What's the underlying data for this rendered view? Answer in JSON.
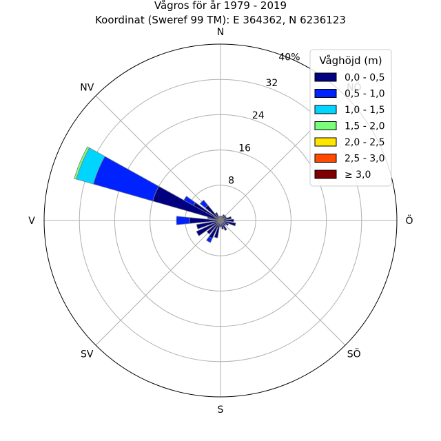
{
  "chart_data": {
    "type": "windrose",
    "title_line1": "Vågros för år 1979 - 2019",
    "title_line2": "Koordinat (Sweref 99 TM): E 364362, N 6236123",
    "direction_labels": [
      "N",
      "NV",
      "V",
      "SV",
      "S",
      "SÖ",
      "Ö",
      "NÖ"
    ],
    "direction_angles": [
      0,
      315,
      270,
      225,
      180,
      135,
      90,
      45
    ],
    "radial_ticks": [
      8,
      16,
      24,
      32
    ],
    "radial_max": 40,
    "radial_max_label": "40%",
    "grid": true,
    "legend": {
      "title": "Våghöjd (m)",
      "placement": "top-right",
      "entries": [
        {
          "label": "0,0 - 0,5",
          "color": "#000080"
        },
        {
          "label": "0,5 - 1,0",
          "color": "#0022ff"
        },
        {
          "label": "1,0 - 1,5",
          "color": "#00d5ff"
        },
        {
          "label": "1,5 - 2,0",
          "color": "#7aff7a"
        },
        {
          "label": "2,0 - 2,5",
          "color": "#ffe600"
        },
        {
          "label": "2,5 - 3,0",
          "color": "#ff4a00"
        },
        {
          "label": "≥ 3,0",
          "color": "#800000"
        }
      ]
    },
    "sectors": [
      {
        "direction": 0,
        "values": [
          1.0
        ]
      },
      {
        "direction": 15,
        "values": [
          1.0
        ]
      },
      {
        "direction": 30,
        "values": [
          1.5
        ]
      },
      {
        "direction": 45,
        "values": [
          1.5
        ]
      },
      {
        "direction": 60,
        "values": [
          1.5
        ]
      },
      {
        "direction": 75,
        "values": [
          2.5
        ]
      },
      {
        "direction": 90,
        "values": [
          3.0
        ]
      },
      {
        "direction": 105,
        "values": [
          3.5
        ]
      },
      {
        "direction": 120,
        "values": [
          2.0
        ]
      },
      {
        "direction": 135,
        "values": [
          1.5
        ]
      },
      {
        "direction": 150,
        "values": [
          2.5
        ]
      },
      {
        "direction": 165,
        "values": [
          2.0
        ]
      },
      {
        "direction": 180,
        "values": [
          1.5
        ]
      },
      {
        "direction": 195,
        "values": [
          4.0
        ]
      },
      {
        "direction": 210,
        "values": [
          4.5,
          1.0
        ]
      },
      {
        "direction": 225,
        "values": [
          4.0
        ]
      },
      {
        "direction": 240,
        "values": [
          6.0
        ]
      },
      {
        "direction": 255,
        "values": [
          5.5
        ]
      },
      {
        "direction": 270,
        "values": [
          7.0,
          3.0
        ]
      },
      {
        "direction": 285,
        "values": [
          3.0
        ]
      },
      {
        "direction": 300,
        "values": [
          7.0,
          2.5
        ]
      },
      {
        "direction": 315,
        "values": [
          4.5,
          1.5
        ]
      },
      {
        "direction": 330,
        "values": [
          2.0
        ]
      },
      {
        "direction": 345,
        "values": [
          1.0
        ]
      }
    ],
    "sector_nw_main": {
      "direction": 292.5,
      "values": [
        16.0,
        14.0,
        4.0,
        0.5
      ]
    }
  }
}
